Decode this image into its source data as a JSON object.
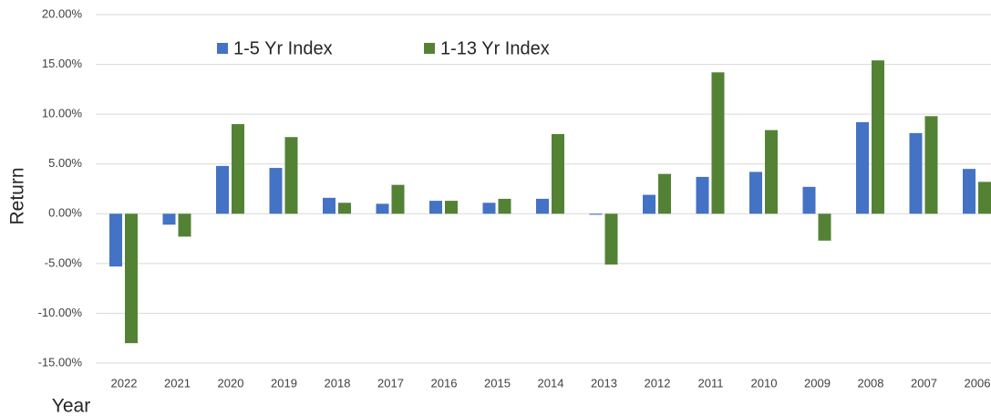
{
  "chart_data": {
    "type": "bar",
    "x_label": "Year",
    "y_label": "Return",
    "categories": [
      "2022",
      "2021",
      "2020",
      "2019",
      "2018",
      "2017",
      "2016",
      "2015",
      "2014",
      "2013",
      "2012",
      "2011",
      "2010",
      "2009",
      "2008",
      "2007",
      "2006"
    ],
    "series": [
      {
        "name": "1-5 Yr Index",
        "color": "#4472c4",
        "values": [
          -5.3,
          -1.1,
          4.8,
          4.6,
          1.6,
          1.0,
          1.3,
          1.1,
          1.5,
          -0.1,
          1.9,
          3.7,
          4.2,
          2.7,
          9.2,
          8.1,
          4.5
        ]
      },
      {
        "name": "1-13 Yr Index",
        "color": "#548235",
        "values": [
          -13.0,
          -2.3,
          9.0,
          7.7,
          1.1,
          2.9,
          1.3,
          1.5,
          8.0,
          -5.1,
          4.0,
          14.2,
          8.4,
          -2.7,
          15.4,
          9.8,
          3.2
        ]
      }
    ],
    "ylim": [
      -15,
      20
    ],
    "yticks": [
      {
        "value": -15,
        "label": "-15.00%"
      },
      {
        "value": -10,
        "label": "-10.00%"
      },
      {
        "value": -5,
        "label": "-5.00%"
      },
      {
        "value": 0,
        "label": "0.00%"
      },
      {
        "value": 5,
        "label": "5.00%"
      },
      {
        "value": 10,
        "label": "10.00%"
      },
      {
        "value": 15,
        "label": "15.00%"
      },
      {
        "value": 20,
        "label": "20.00%"
      }
    ],
    "grid": true,
    "legend": "top-left"
  }
}
